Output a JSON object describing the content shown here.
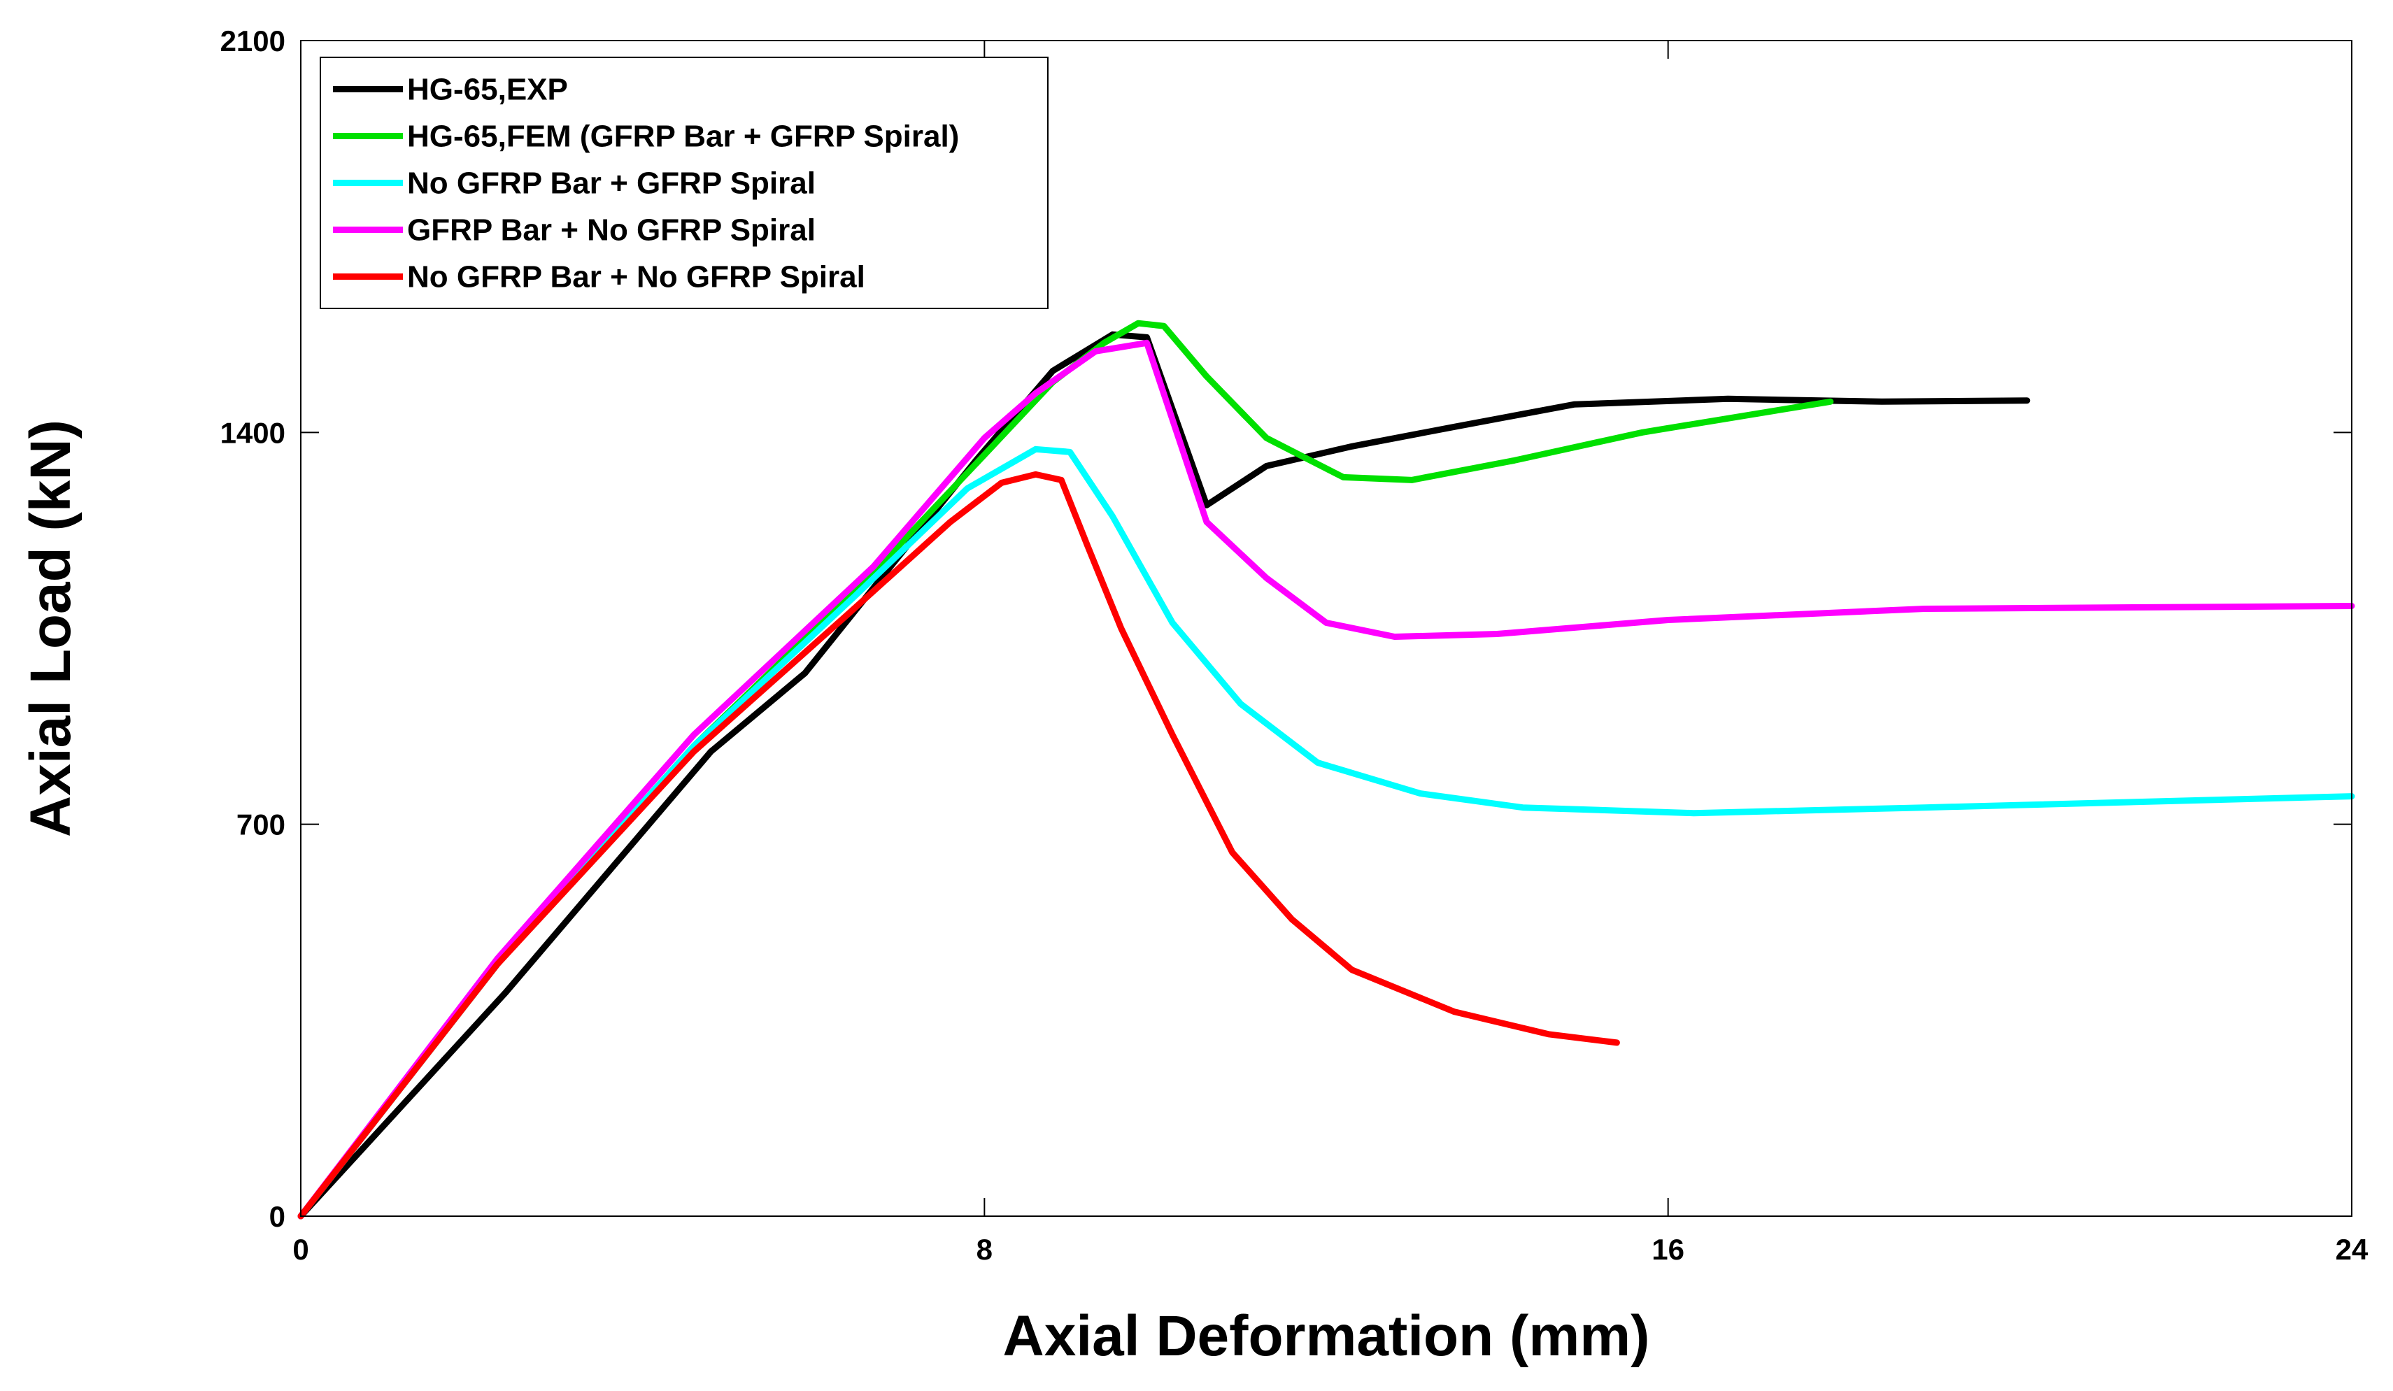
{
  "chart_data": {
    "type": "line",
    "title": "",
    "xlabel": "Axial Deformation (mm)",
    "ylabel": "Axial Load (kN)",
    "xlim": [
      0,
      24
    ],
    "ylim": [
      0,
      2100
    ],
    "xticks": [
      0,
      8,
      16,
      24
    ],
    "yticks": [
      0,
      700,
      1400,
      2100
    ],
    "xtick_labels": [
      "0",
      "8",
      "16",
      "24"
    ],
    "ytick_labels": [
      "0",
      "700",
      "1400",
      "2100"
    ],
    "grid": false,
    "legend_position": "top-left",
    "series": [
      {
        "name": "HG-65,EXP",
        "color": "#000000",
        "points": [
          [
            0,
            0
          ],
          [
            2.4,
            400
          ],
          [
            4.8,
            830
          ],
          [
            5.9,
            970
          ],
          [
            7.9,
            1350
          ],
          [
            8.8,
            1510
          ],
          [
            9.5,
            1575
          ],
          [
            9.9,
            1570
          ],
          [
            10.6,
            1270
          ],
          [
            11.3,
            1340
          ],
          [
            12.3,
            1375
          ],
          [
            13.5,
            1410
          ],
          [
            14.9,
            1450
          ],
          [
            16.7,
            1460
          ],
          [
            18.5,
            1455
          ],
          [
            20.2,
            1457
          ]
        ]
      },
      {
        "name": "HG-65,FEM (GFRP Bar + GFRP Spiral)",
        "color": "#00e000",
        "points": [
          [
            0,
            0
          ],
          [
            2.3,
            450
          ],
          [
            4.6,
            840
          ],
          [
            6.7,
            1150
          ],
          [
            8.0,
            1360
          ],
          [
            8.8,
            1490
          ],
          [
            9.4,
            1560
          ],
          [
            9.8,
            1595
          ],
          [
            10.1,
            1590
          ],
          [
            10.6,
            1500
          ],
          [
            11.3,
            1390
          ],
          [
            12.2,
            1320
          ],
          [
            13.0,
            1315
          ],
          [
            14.2,
            1350
          ],
          [
            15.7,
            1400
          ],
          [
            17.9,
            1455
          ]
        ]
      },
      {
        "name": "No GFRP Bar + GFRP Spiral",
        "color": "#00ffff",
        "points": [
          [
            0,
            0
          ],
          [
            2.3,
            450
          ],
          [
            4.6,
            840
          ],
          [
            6.5,
            1110
          ],
          [
            7.8,
            1300
          ],
          [
            8.6,
            1370
          ],
          [
            9.0,
            1365
          ],
          [
            9.5,
            1250
          ],
          [
            10.2,
            1060
          ],
          [
            11.0,
            915
          ],
          [
            11.9,
            810
          ],
          [
            13.1,
            755
          ],
          [
            14.3,
            730
          ],
          [
            16.3,
            720
          ],
          [
            19.0,
            730
          ],
          [
            24.0,
            750
          ]
        ]
      },
      {
        "name": "GFRP Bar + No GFRP Spiral",
        "color": "#ff00ff",
        "points": [
          [
            0,
            0
          ],
          [
            2.3,
            460
          ],
          [
            4.6,
            860
          ],
          [
            6.7,
            1160
          ],
          [
            8.0,
            1390
          ],
          [
            8.6,
            1470
          ],
          [
            9.3,
            1545
          ],
          [
            9.9,
            1560
          ],
          [
            10.6,
            1240
          ],
          [
            11.3,
            1140
          ],
          [
            12.0,
            1060
          ],
          [
            12.8,
            1035
          ],
          [
            14.0,
            1040
          ],
          [
            16.0,
            1065
          ],
          [
            19.0,
            1085
          ],
          [
            24.0,
            1090
          ]
        ]
      },
      {
        "name": "No GFRP Bar + No GFRP Spiral",
        "color": "#ff0000",
        "points": [
          [
            0,
            0
          ],
          [
            2.3,
            450
          ],
          [
            4.6,
            830
          ],
          [
            6.4,
            1075
          ],
          [
            7.6,
            1240
          ],
          [
            8.2,
            1310
          ],
          [
            8.6,
            1325
          ],
          [
            8.9,
            1315
          ],
          [
            9.2,
            1200
          ],
          [
            9.6,
            1050
          ],
          [
            10.2,
            860
          ],
          [
            10.9,
            650
          ],
          [
            11.6,
            530
          ],
          [
            12.3,
            440
          ],
          [
            13.5,
            365
          ],
          [
            14.6,
            325
          ],
          [
            15.4,
            310
          ]
        ]
      }
    ]
  }
}
